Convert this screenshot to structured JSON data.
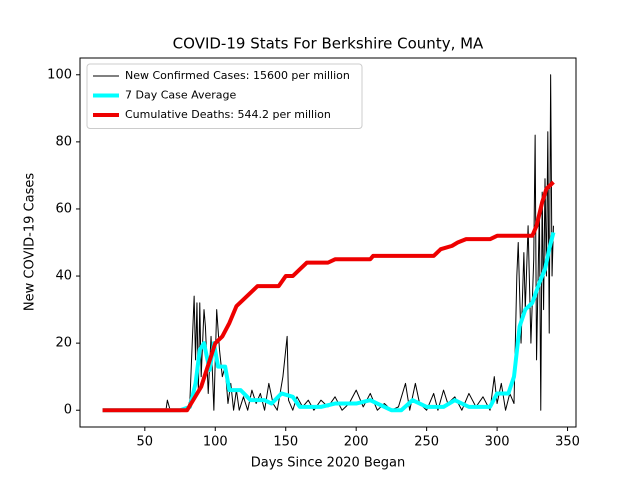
{
  "chart_data": {
    "type": "line",
    "title": "COVID-19 Stats For Berkshire County, MA",
    "xlabel": "Days Since 2020 Began",
    "ylabel": "New COVID-19 Cases",
    "xlim": [
      4,
      356
    ],
    "ylim": [
      -5,
      105
    ],
    "xticks": [
      50,
      100,
      150,
      200,
      250,
      300,
      350
    ],
    "yticks": [
      0,
      20,
      40,
      60,
      80,
      100
    ],
    "legend": "upper left",
    "series": [
      {
        "name": "New Confirmed Cases: 15600 per million",
        "color": "#000000",
        "width": 1,
        "x": [
          20,
          40,
          65,
          66,
          68,
          80,
          82,
          85,
          86,
          87,
          88,
          89,
          90,
          92,
          93,
          95,
          97,
          99,
          101,
          103,
          105,
          107,
          109,
          111,
          113,
          115,
          117,
          120,
          123,
          126,
          129,
          132,
          135,
          138,
          141,
          144,
          148,
          151,
          152,
          155,
          158,
          162,
          166,
          170,
          175,
          180,
          185,
          190,
          195,
          200,
          205,
          210,
          215,
          220,
          225,
          230,
          235,
          238,
          242,
          245,
          250,
          255,
          258,
          262,
          265,
          270,
          275,
          280,
          285,
          290,
          295,
          298,
          300,
          303,
          306,
          309,
          312,
          314,
          315,
          317,
          319,
          320,
          322,
          324,
          326,
          327,
          328,
          330,
          331,
          332,
          333,
          334,
          335,
          336,
          337,
          338,
          339,
          340
        ],
        "values": [
          0,
          0,
          0,
          3,
          0,
          0,
          3,
          34,
          15,
          32,
          5,
          32,
          10,
          30,
          25,
          5,
          22,
          0,
          30,
          18,
          10,
          13,
          2,
          8,
          0,
          6,
          0,
          4,
          0,
          6,
          2,
          5,
          0,
          8,
          2,
          0,
          10,
          22,
          3,
          0,
          4,
          1,
          3,
          0,
          3,
          1,
          4,
          0,
          2,
          6,
          1,
          5,
          0,
          2,
          0,
          1,
          8,
          0,
          8,
          2,
          0,
          5,
          0,
          6,
          2,
          4,
          0,
          5,
          1,
          4,
          0,
          10,
          2,
          8,
          0,
          5,
          2,
          40,
          50,
          20,
          47,
          30,
          55,
          20,
          45,
          82,
          15,
          60,
          0,
          65,
          30,
          69,
          40,
          83,
          23,
          100,
          40,
          55
        ]
      },
      {
        "name": "7 Day Case Average",
        "color": "#00ffff",
        "width": 4,
        "x": [
          20,
          75,
          82,
          86,
          89,
          92,
          96,
          99,
          102,
          107,
          110,
          118,
          125,
          135,
          140,
          147,
          155,
          160,
          175,
          185,
          200,
          210,
          215,
          225,
          232,
          240,
          250,
          262,
          270,
          280,
          295,
          300,
          308,
          312,
          316,
          320,
          325,
          330,
          334,
          337,
          340
        ],
        "values": [
          0,
          0,
          1,
          8,
          18,
          20,
          12,
          20,
          13,
          13,
          6,
          6,
          3,
          3,
          2,
          5,
          4,
          1,
          1,
          2,
          2,
          3,
          2,
          0,
          0,
          3,
          1,
          1,
          3,
          1,
          1,
          5,
          5,
          10,
          25,
          30,
          32,
          38,
          42,
          48,
          53
        ]
      },
      {
        "name": "Cumulative Deaths: 544.2 per million",
        "color": "#ee0000",
        "width": 4,
        "x": [
          20,
          80,
          90,
          100,
          105,
          110,
          115,
          125,
          130,
          145,
          150,
          155,
          160,
          165,
          180,
          185,
          210,
          212,
          255,
          260,
          268,
          272,
          278,
          295,
          300,
          325,
          328,
          332,
          335,
          340
        ],
        "values": [
          0,
          0,
          7,
          20,
          22,
          26,
          31,
          35,
          37,
          37,
          40,
          40,
          42,
          44,
          44,
          45,
          45,
          46,
          46,
          48,
          49,
          50,
          51,
          51,
          52,
          52,
          55,
          62,
          66,
          68
        ]
      }
    ]
  }
}
